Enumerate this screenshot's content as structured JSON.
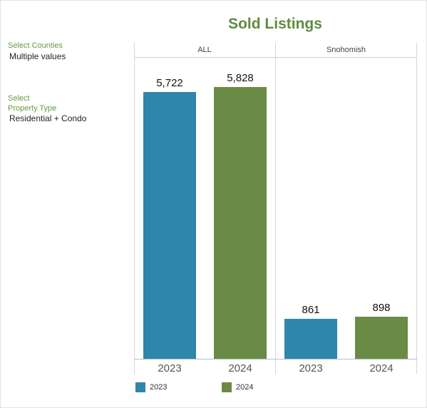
{
  "header": {
    "title": "Sold Listings"
  },
  "filters": {
    "counties_label": "Select Counties",
    "counties_value": "Multiple values",
    "property_label_line1": "Select",
    "property_label_line2": "Property Type",
    "property_value": "Residential + Condo"
  },
  "colors": {
    "2023": "#2e86aa",
    "2024": "#6a8b45"
  },
  "chart_data": {
    "type": "bar",
    "title": "Sold Listings",
    "panels": [
      {
        "name": "ALL",
        "categories": [
          "2023",
          "2024"
        ],
        "values": [
          5722,
          5828
        ],
        "labels": [
          "5,722",
          "5,828"
        ]
      },
      {
        "name": "Snohomish",
        "categories": [
          "2023",
          "2024"
        ],
        "values": [
          861,
          898
        ],
        "labels": [
          "861",
          "898"
        ]
      }
    ],
    "ylim": [
      0,
      6200
    ],
    "grid": false,
    "legend": {
      "position": "bottom-left",
      "entries": [
        "2023",
        "2024"
      ]
    }
  }
}
